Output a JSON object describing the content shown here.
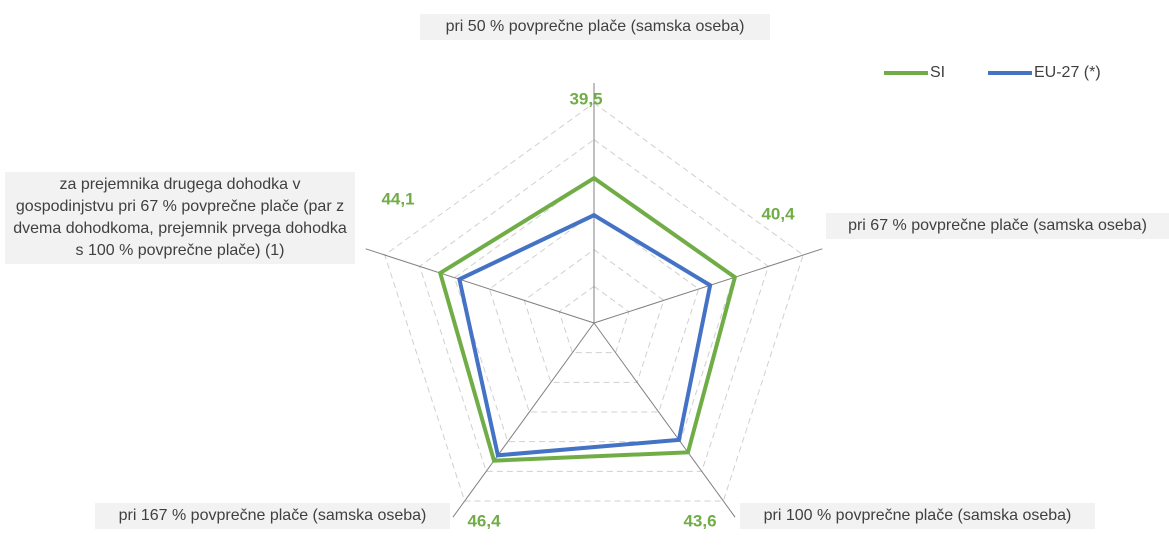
{
  "chart_data": {
    "type": "radar",
    "categories": [
      "pri 50 % povprečne plače (samska oseba)",
      "pri 67 % povprečne plače (samska oseba)",
      "pri 100 % povprečne plače (samska oseba)",
      "pri 167 % povprečne plače (samska oseba)",
      "za prejemnika drugega dohodka v gospodinjstvu pri 67 % povprečne plače (par z dvema dohodkoma, prejemnik prvega dohodka s 100 % povprečne plače) (1)"
    ],
    "series": [
      {
        "name": "SI",
        "color": "#70ad47",
        "values": [
          39.5,
          40.4,
          43.6,
          46.4,
          44.1
        ],
        "value_labels": [
          "39,5",
          "40,4",
          "43,6",
          "46,4",
          "44,1"
        ]
      },
      {
        "name": "EU-27 (*)",
        "color": "#4472c4",
        "values": [
          29.4,
          33.3,
          39.4,
          44.6,
          38.6
        ]
      }
    ],
    "rlim": [
      0,
      60
    ],
    "rticks": [
      10,
      20,
      30,
      40,
      50,
      60
    ],
    "legend": "top-right"
  }
}
